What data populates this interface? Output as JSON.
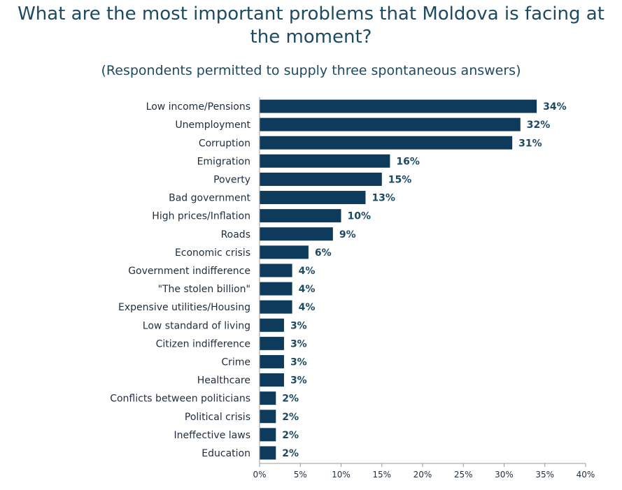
{
  "title": "What are the most important problems that Moldova is facing at the moment?",
  "subtitle": "(Respondents permitted to supply three spontaneous answers)",
  "colors": {
    "bar": "#0e3a5c",
    "text": "#1d4a63",
    "axis": "#9a9a9a"
  },
  "chart_data": {
    "type": "bar",
    "orientation": "horizontal",
    "categories": [
      "Low income/Pensions",
      "Unemployment",
      "Corruption",
      "Emigration",
      "Poverty",
      "Bad government",
      "High prices/Inflation",
      "Roads",
      "Economic crisis",
      "Government indifference",
      "\"The stolen billion\"",
      "Expensive utilities/Housing",
      "Low standard of living",
      "Citizen indifference",
      "Crime",
      "Healthcare",
      "Conflicts between politicians",
      "Political crisis",
      "Ineffective laws",
      "Education"
    ],
    "values": [
      34,
      32,
      31,
      16,
      15,
      13,
      10,
      9,
      6,
      4,
      4,
      4,
      3,
      3,
      3,
      3,
      2,
      2,
      2,
      2
    ],
    "value_labels": [
      "34%",
      "32%",
      "31%",
      "16%",
      "15%",
      "13%",
      "10%",
      "9%",
      "6%",
      "4%",
      "4%",
      "4%",
      "3%",
      "3%",
      "3%",
      "3%",
      "2%",
      "2%",
      "2%",
      "2%"
    ],
    "xlim": [
      0,
      40
    ],
    "x_ticks": [
      0,
      5,
      10,
      15,
      20,
      25,
      30,
      35,
      40
    ],
    "x_tick_labels": [
      "0%",
      "5%",
      "10%",
      "15%",
      "20%",
      "25%",
      "30%",
      "35%",
      "40%"
    ],
    "grid": false,
    "legend": "none"
  }
}
